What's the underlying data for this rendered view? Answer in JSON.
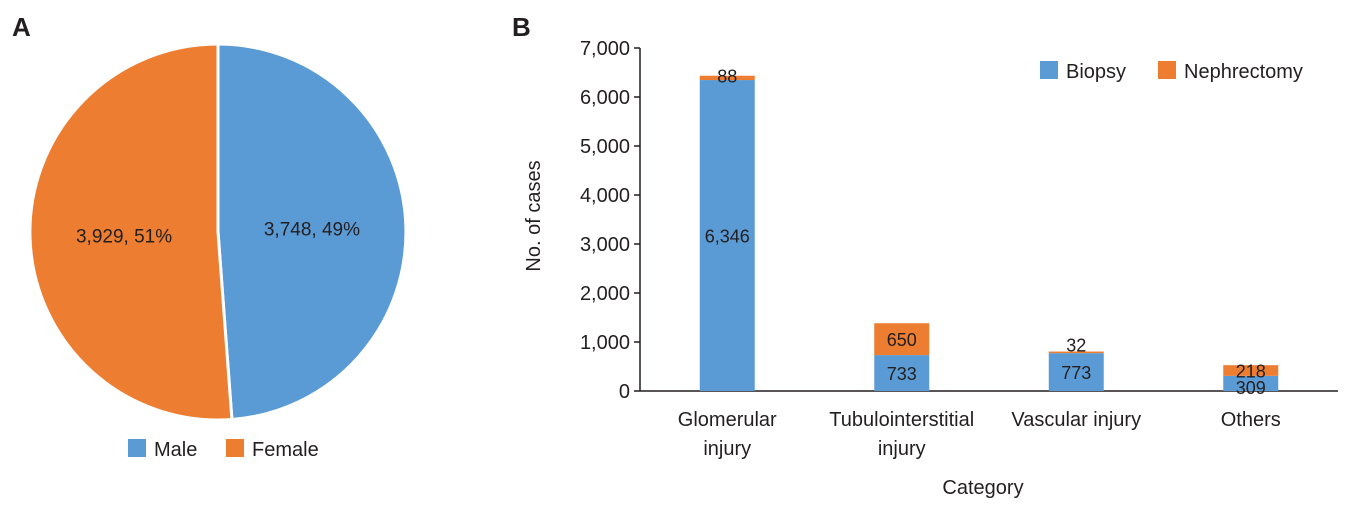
{
  "panels": {
    "a_label": "A",
    "b_label": "B"
  },
  "chart_data": [
    {
      "type": "pie",
      "slices": [
        {
          "name": "Male",
          "value": 3748,
          "label": "3,748, 49%",
          "color": "#5b9bd5"
        },
        {
          "name": "Female",
          "value": 3929,
          "label": "3,929, 51%",
          "color": "#ed7d31"
        }
      ],
      "legend": [
        "Male",
        "Female"
      ],
      "legend_position": "bottom"
    },
    {
      "type": "bar",
      "stacked": true,
      "categories": [
        [
          "Glomerular",
          "injury"
        ],
        [
          "Tubulointerstitial",
          "injury"
        ],
        [
          "Vascular injury"
        ],
        [
          "Others"
        ]
      ],
      "series": [
        {
          "name": "Biopsy",
          "color": "#5b9bd5",
          "values": [
            6346,
            733,
            773,
            309
          ],
          "labels": [
            "6,346",
            "733",
            "773",
            "309"
          ]
        },
        {
          "name": "Nephrectomy",
          "color": "#ed7d31",
          "values": [
            88,
            650,
            32,
            218
          ],
          "labels": [
            "88",
            "650",
            "32",
            "218"
          ]
        }
      ],
      "xlabel": "Category",
      "ylabel": "No. of cases",
      "ylim": [
        0,
        7000
      ],
      "yticks": [
        0,
        1000,
        2000,
        3000,
        4000,
        5000,
        6000,
        7000
      ],
      "ytick_labels": [
        "0",
        "1,000",
        "2,000",
        "3,000",
        "4,000",
        "5,000",
        "6,000",
        "7,000"
      ],
      "legend_position": "top-right",
      "grid": false
    }
  ]
}
